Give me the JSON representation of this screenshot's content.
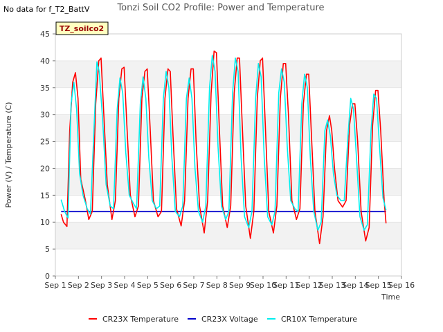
{
  "no_data_message": "No data for f_T2_BattV",
  "site_badge": "TZ_soilco2",
  "chart_data": {
    "type": "line",
    "title": "Tonzi Soil CO2 Profile: Power and Temperature",
    "xlabel": "Time",
    "ylabel": "Power (V) / Temperature (C)",
    "xlim": [
      1,
      16
    ],
    "ylim": [
      0,
      45
    ],
    "yticks": [
      0,
      5,
      10,
      15,
      20,
      25,
      30,
      35,
      40,
      45
    ],
    "xticks": [
      {
        "value": 1,
        "label": "Sep 1"
      },
      {
        "value": 2,
        "label": "Sep 2"
      },
      {
        "value": 3,
        "label": "Sep 3"
      },
      {
        "value": 4,
        "label": "Sep 4"
      },
      {
        "value": 5,
        "label": "Sep 5"
      },
      {
        "value": 6,
        "label": "Sep 6"
      },
      {
        "value": 7,
        "label": "Sep 7"
      },
      {
        "value": 8,
        "label": "Sep 8"
      },
      {
        "value": 9,
        "label": "Sep 9"
      },
      {
        "value": 10,
        "label": "Sep 10"
      },
      {
        "value": 11,
        "label": "Sep 11"
      },
      {
        "value": 12,
        "label": "Sep 12"
      },
      {
        "value": 13,
        "label": "Sep 13"
      },
      {
        "value": 14,
        "label": "Sep 14"
      },
      {
        "value": 15,
        "label": "Sep 15"
      },
      {
        "value": 16,
        "label": "Sep 16"
      }
    ],
    "grid": "horizontal bands",
    "legend_position": "bottom",
    "series": [
      {
        "name": "CR23X Temperature",
        "color": "#ff0000",
        "x": [
          1.25,
          1.35,
          1.5,
          1.62,
          1.75,
          1.87,
          1.98,
          2.1,
          2.28,
          2.45,
          2.6,
          2.75,
          2.88,
          2.98,
          3.1,
          3.25,
          3.45,
          3.6,
          3.75,
          3.88,
          3.98,
          4.1,
          4.25,
          4.45,
          4.6,
          4.75,
          4.88,
          4.98,
          5.1,
          5.25,
          5.45,
          5.6,
          5.75,
          5.88,
          5.98,
          6.1,
          6.25,
          6.45,
          6.6,
          6.75,
          6.88,
          6.98,
          7.1,
          7.25,
          7.45,
          7.6,
          7.75,
          7.88,
          7.98,
          8.1,
          8.25,
          8.45,
          8.6,
          8.75,
          8.88,
          8.98,
          9.1,
          9.25,
          9.45,
          9.6,
          9.75,
          9.88,
          9.98,
          10.1,
          10.25,
          10.45,
          10.6,
          10.75,
          10.88,
          10.98,
          11.1,
          11.25,
          11.45,
          11.6,
          11.75,
          11.88,
          11.98,
          12.1,
          12.25,
          12.45,
          12.6,
          12.75,
          12.88,
          12.98,
          13.1,
          13.25,
          13.45,
          13.6,
          13.75,
          13.88,
          13.98,
          14.1,
          14.25,
          14.45,
          14.6,
          14.75,
          14.88,
          14.98,
          15.1,
          15.25,
          15.33
        ],
        "y": [
          11.5,
          10,
          9.2,
          27,
          36,
          37.8,
          33,
          18,
          14.5,
          10.5,
          12,
          32,
          40,
          40.5,
          30,
          17,
          10.5,
          14,
          33,
          38.5,
          38.8,
          28,
          15,
          11,
          13,
          33,
          38,
          38.5,
          28,
          14,
          11,
          12,
          33,
          38.5,
          38,
          26,
          12.5,
          9.3,
          14,
          33,
          38.5,
          38.5,
          25,
          13,
          8,
          14,
          34,
          41.8,
          41.5,
          28,
          13,
          9,
          13,
          34,
          40.5,
          40.5,
          28,
          13,
          7,
          12,
          33,
          40,
          40.5,
          28,
          12,
          8,
          13,
          33,
          39.5,
          39.5,
          30,
          14,
          10.5,
          12.5,
          32,
          37.5,
          37.5,
          26,
          12,
          6,
          11,
          27,
          29.8,
          27,
          20,
          14,
          12.8,
          14,
          28,
          32,
          32,
          25,
          12,
          6.5,
          9,
          28,
          34.5,
          34.5,
          27,
          14,
          9.8
        ]
      },
      {
        "name": "CR23X Voltage",
        "color": "#0000cc",
        "x": [
          1.25,
          2,
          3,
          4,
          5,
          6,
          7,
          8,
          9,
          10,
          11,
          12,
          13,
          14,
          15,
          15.33
        ],
        "y": [
          12,
          12,
          12,
          12,
          12,
          12,
          12,
          12,
          12,
          12,
          12,
          12,
          12,
          12,
          12,
          12
        ]
      },
      {
        "name": "CR10X Temperature",
        "color": "#00eeee",
        "x": [
          1.25,
          1.4,
          1.55,
          1.68,
          1.8,
          1.92,
          2.05,
          2.2,
          2.38,
          2.52,
          2.68,
          2.8,
          2.9,
          3.05,
          3.2,
          3.38,
          3.52,
          3.68,
          3.8,
          3.92,
          4.05,
          4.2,
          4.38,
          4.52,
          4.68,
          4.8,
          4.92,
          5.05,
          5.2,
          5.38,
          5.52,
          5.68,
          5.8,
          5.92,
          6.05,
          6.2,
          6.38,
          6.52,
          6.68,
          6.8,
          6.92,
          7.05,
          7.2,
          7.38,
          7.52,
          7.68,
          7.8,
          7.92,
          8.05,
          8.2,
          8.38,
          8.52,
          8.68,
          8.8,
          8.92,
          9.05,
          9.2,
          9.38,
          9.52,
          9.68,
          9.8,
          9.92,
          10.05,
          10.2,
          10.38,
          10.52,
          10.68,
          10.8,
          10.92,
          11.05,
          11.2,
          11.38,
          11.52,
          11.68,
          11.8,
          11.92,
          12.05,
          12.2,
          12.38,
          12.52,
          12.68,
          12.8,
          12.92,
          13.05,
          13.2,
          13.38,
          13.52,
          13.68,
          13.8,
          13.92,
          14.05,
          14.2,
          14.38,
          14.52,
          14.68,
          14.8,
          14.92,
          15.05,
          15.2,
          15.33
        ],
        "y": [
          14.2,
          12,
          10.8,
          32,
          36,
          31,
          19,
          15,
          12.5,
          11.5,
          28,
          39.8,
          38,
          29,
          17,
          13,
          12.5,
          31,
          36.8,
          34,
          23,
          15,
          13.5,
          12.5,
          32,
          37,
          33,
          22,
          14,
          12.5,
          13,
          33,
          38,
          35,
          22,
          12,
          11,
          13,
          33,
          36.8,
          33,
          20,
          12,
          10,
          13,
          35,
          41,
          38,
          24,
          13,
          10.5,
          12,
          34,
          40.5,
          38,
          22,
          11,
          9,
          12,
          33,
          39.5,
          37,
          22,
          11,
          9.5,
          12,
          34,
          38.5,
          36,
          24,
          14,
          12.5,
          12,
          32,
          37.5,
          35,
          22,
          12,
          8.5,
          10,
          27,
          29,
          26,
          19,
          15,
          14,
          14,
          26,
          33,
          31,
          22,
          11,
          8.5,
          9.5,
          27,
          33.8,
          33,
          24,
          14.5,
          12.2
        ]
      }
    ]
  }
}
